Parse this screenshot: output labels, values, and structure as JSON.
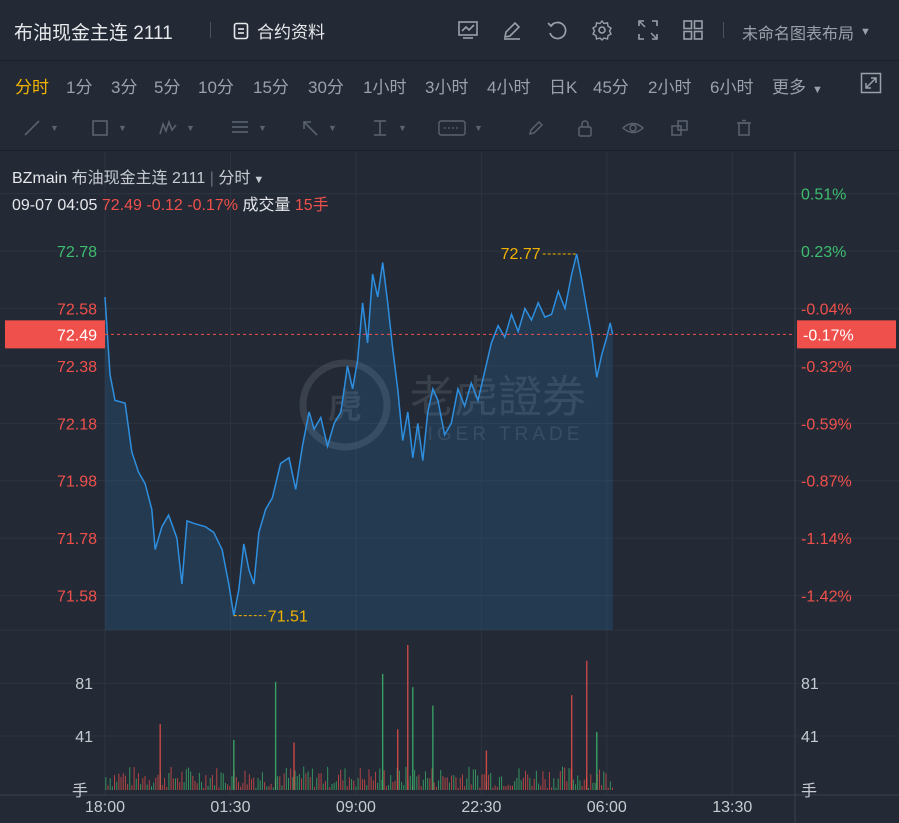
{
  "header": {
    "symbol_title": "布油现金主连 2111",
    "contract_info_label": "合约资料",
    "layout_label": "未命名图表布局",
    "icons": [
      "chart-settings-icon",
      "edit-icon",
      "refresh-icon",
      "gear-icon",
      "fullscreen-expand-icon",
      "grid-layout-icon",
      "caret-down-icon"
    ]
  },
  "periods": {
    "items": [
      "分时",
      "1分",
      "3分",
      "5分",
      "10分",
      "15分",
      "30分",
      "1小时",
      "3小时",
      "4小时",
      "日K",
      "45分",
      "2小时",
      "6小时"
    ],
    "active": "分时",
    "more_label": "更多"
  },
  "drawing_tools": [
    "line-tool-icon",
    "rectangle-tool-icon",
    "pattern-tool-icon",
    "fib-tool-icon",
    "arrow-tool-icon",
    "measure-tool-icon",
    "text-tool-icon",
    "brush-icon",
    "lock-icon",
    "eye-icon",
    "layers-icon",
    "trash-icon"
  ],
  "chart_header": {
    "symbol": "BZmain",
    "name": "布油现金主连 2111",
    "separator": "|",
    "period": "分时",
    "datetime": "09-07 04:05",
    "price": "72.49",
    "change": "-0.12",
    "change_pct": "-0.17%",
    "volume_label": "成交量",
    "volume_value": "15手"
  },
  "watermark": {
    "cn": "老虎證券",
    "en": "TIGER TRADE"
  },
  "colors": {
    "background": "#232a35",
    "line": "#2e8fe0",
    "up": "#3dbd6f",
    "down": "#f0504b",
    "highlight": "#f2b400",
    "grid": "#2d3440"
  },
  "chart_data": {
    "type": "line",
    "current_price": 72.49,
    "current_label": "72.49",
    "current_pct_label": "-0.17%",
    "max_price": 72.77,
    "max_label": "72.77",
    "min_price": 71.51,
    "min_label": "71.51",
    "y_ticks": [
      {
        "value": 72.78,
        "label": "72.78",
        "pct": "0.23%"
      },
      {
        "value": 72.58,
        "label": "72.58",
        "pct": "-0.04%"
      },
      {
        "value": 72.38,
        "label": "72.38",
        "pct": "-0.32%"
      },
      {
        "value": 72.18,
        "label": "72.18",
        "pct": "-0.59%"
      },
      {
        "value": 71.98,
        "label": "71.98",
        "pct": "-0.87%"
      },
      {
        "value": 71.78,
        "label": "71.78",
        "pct": "-1.14%"
      },
      {
        "value": 71.58,
        "label": "71.58",
        "pct": "-1.42%"
      }
    ],
    "top_pct_label": "0.51%",
    "top_pct_value": 72.98,
    "y_range": [
      71.46,
      73.08
    ],
    "x_ticks": [
      "18:00",
      "01:30",
      "09:00",
      "22:30",
      "06:00",
      "13:30"
    ],
    "x_axis_hours": [
      0,
      7.5,
      15,
      22.5,
      30,
      37.5
    ],
    "x_range_hours": [
      0,
      41.25
    ],
    "price_series": [
      {
        "t": 0.0,
        "p": 72.62
      },
      {
        "t": 0.3,
        "p": 72.35
      },
      {
        "t": 0.6,
        "p": 72.26
      },
      {
        "t": 1.2,
        "p": 72.25
      },
      {
        "t": 1.6,
        "p": 72.08
      },
      {
        "t": 2.0,
        "p": 72.01
      },
      {
        "t": 2.4,
        "p": 71.97
      },
      {
        "t": 2.8,
        "p": 71.88
      },
      {
        "t": 3.0,
        "p": 71.74
      },
      {
        "t": 3.4,
        "p": 71.82
      },
      {
        "t": 3.8,
        "p": 71.86
      },
      {
        "t": 4.3,
        "p": 71.78
      },
      {
        "t": 4.6,
        "p": 71.62
      },
      {
        "t": 4.9,
        "p": 71.84
      },
      {
        "t": 5.4,
        "p": 71.83
      },
      {
        "t": 6.0,
        "p": 71.82
      },
      {
        "t": 6.5,
        "p": 71.8
      },
      {
        "t": 7.0,
        "p": 71.74
      },
      {
        "t": 7.4,
        "p": 71.62
      },
      {
        "t": 7.7,
        "p": 71.51
      },
      {
        "t": 8.0,
        "p": 71.6
      },
      {
        "t": 8.3,
        "p": 71.76
      },
      {
        "t": 8.6,
        "p": 71.67
      },
      {
        "t": 8.9,
        "p": 71.62
      },
      {
        "t": 9.2,
        "p": 71.8
      },
      {
        "t": 9.6,
        "p": 71.88
      },
      {
        "t": 10.0,
        "p": 71.92
      },
      {
        "t": 10.5,
        "p": 72.04
      },
      {
        "t": 11.0,
        "p": 72.06
      },
      {
        "t": 11.4,
        "p": 71.95
      },
      {
        "t": 11.8,
        "p": 72.1
      },
      {
        "t": 12.2,
        "p": 72.22
      },
      {
        "t": 12.5,
        "p": 72.16
      },
      {
        "t": 12.9,
        "p": 72.2
      },
      {
        "t": 13.3,
        "p": 72.1
      },
      {
        "t": 13.7,
        "p": 72.18
      },
      {
        "t": 14.1,
        "p": 72.22
      },
      {
        "t": 14.5,
        "p": 72.38
      },
      {
        "t": 14.8,
        "p": 72.3
      },
      {
        "t": 15.1,
        "p": 72.4
      },
      {
        "t": 15.4,
        "p": 72.6
      },
      {
        "t": 15.7,
        "p": 72.46
      },
      {
        "t": 16.0,
        "p": 72.7
      },
      {
        "t": 16.3,
        "p": 72.62
      },
      {
        "t": 16.6,
        "p": 72.74
      },
      {
        "t": 16.9,
        "p": 72.6
      },
      {
        "t": 17.2,
        "p": 72.44
      },
      {
        "t": 17.5,
        "p": 72.3
      },
      {
        "t": 17.8,
        "p": 72.12
      },
      {
        "t": 18.1,
        "p": 72.22
      },
      {
        "t": 18.4,
        "p": 72.06
      },
      {
        "t": 18.7,
        "p": 72.18
      },
      {
        "t": 19.0,
        "p": 72.05
      },
      {
        "t": 19.3,
        "p": 72.22
      },
      {
        "t": 19.6,
        "p": 72.3
      },
      {
        "t": 19.9,
        "p": 72.26
      },
      {
        "t": 20.3,
        "p": 72.14
      },
      {
        "t": 20.7,
        "p": 72.18
      },
      {
        "t": 21.1,
        "p": 72.3
      },
      {
        "t": 21.5,
        "p": 72.24
      },
      {
        "t": 21.9,
        "p": 72.32
      },
      {
        "t": 22.3,
        "p": 72.26
      },
      {
        "t": 22.7,
        "p": 72.36
      },
      {
        "t": 23.1,
        "p": 72.46
      },
      {
        "t": 23.5,
        "p": 72.52
      },
      {
        "t": 23.9,
        "p": 72.48
      },
      {
        "t": 24.3,
        "p": 72.56
      },
      {
        "t": 24.7,
        "p": 72.5
      },
      {
        "t": 25.1,
        "p": 72.58
      },
      {
        "t": 25.5,
        "p": 72.54
      },
      {
        "t": 25.9,
        "p": 72.6
      },
      {
        "t": 26.3,
        "p": 72.55
      },
      {
        "t": 26.7,
        "p": 72.56
      },
      {
        "t": 27.1,
        "p": 72.64
      },
      {
        "t": 27.5,
        "p": 72.58
      },
      {
        "t": 27.9,
        "p": 72.7
      },
      {
        "t": 28.2,
        "p": 72.77
      },
      {
        "t": 28.5,
        "p": 72.68
      },
      {
        "t": 28.8,
        "p": 72.58
      },
      {
        "t": 29.1,
        "p": 72.48
      },
      {
        "t": 29.4,
        "p": 72.34
      },
      {
        "t": 29.7,
        "p": 72.42
      },
      {
        "t": 30.0,
        "p": 72.48
      },
      {
        "t": 30.2,
        "p": 72.53
      },
      {
        "t": 30.35,
        "p": 72.49
      }
    ],
    "volume": {
      "y_ticks": [
        {
          "value": 81,
          "label": "81"
        },
        {
          "value": 41,
          "label": "41"
        }
      ],
      "unit_label": "手",
      "y_max": 110,
      "spikes": [
        {
          "t": 3.3,
          "v": 50,
          "dir": "down"
        },
        {
          "t": 7.7,
          "v": 38,
          "dir": "up"
        },
        {
          "t": 10.2,
          "v": 82,
          "dir": "up"
        },
        {
          "t": 11.3,
          "v": 36,
          "dir": "down"
        },
        {
          "t": 16.6,
          "v": 88,
          "dir": "up"
        },
        {
          "t": 17.5,
          "v": 46,
          "dir": "down"
        },
        {
          "t": 18.1,
          "v": 110,
          "dir": "down"
        },
        {
          "t": 18.4,
          "v": 78,
          "dir": "up"
        },
        {
          "t": 19.6,
          "v": 64,
          "dir": "up"
        },
        {
          "t": 22.8,
          "v": 30,
          "dir": "down"
        },
        {
          "t": 27.9,
          "v": 72,
          "dir": "down"
        },
        {
          "t": 28.8,
          "v": 98,
          "dir": "down"
        },
        {
          "t": 29.4,
          "v": 44,
          "dir": "up"
        }
      ]
    }
  }
}
